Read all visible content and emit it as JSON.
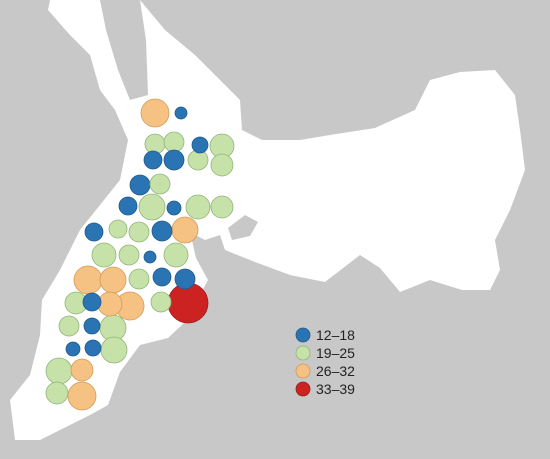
{
  "map": {
    "colors": {
      "water": "#c8c8c8",
      "land": "#ffffff"
    },
    "legend": {
      "classes": [
        {
          "label": "12–18",
          "color": "#2b74b3",
          "stroke": "#1f5a8c"
        },
        {
          "label": "19–25",
          "color": "#c7e2a8",
          "stroke": "#8fb57a"
        },
        {
          "label": "26–32",
          "color": "#f6c283",
          "stroke": "#d39a55"
        },
        {
          "label": "33–39",
          "color": "#cc2222",
          "stroke": "#992020"
        }
      ]
    },
    "bubble_class_counts": {
      "12–18": 19,
      "19–25": 28,
      "26–32": 8,
      "33–39": 1
    }
  }
}
